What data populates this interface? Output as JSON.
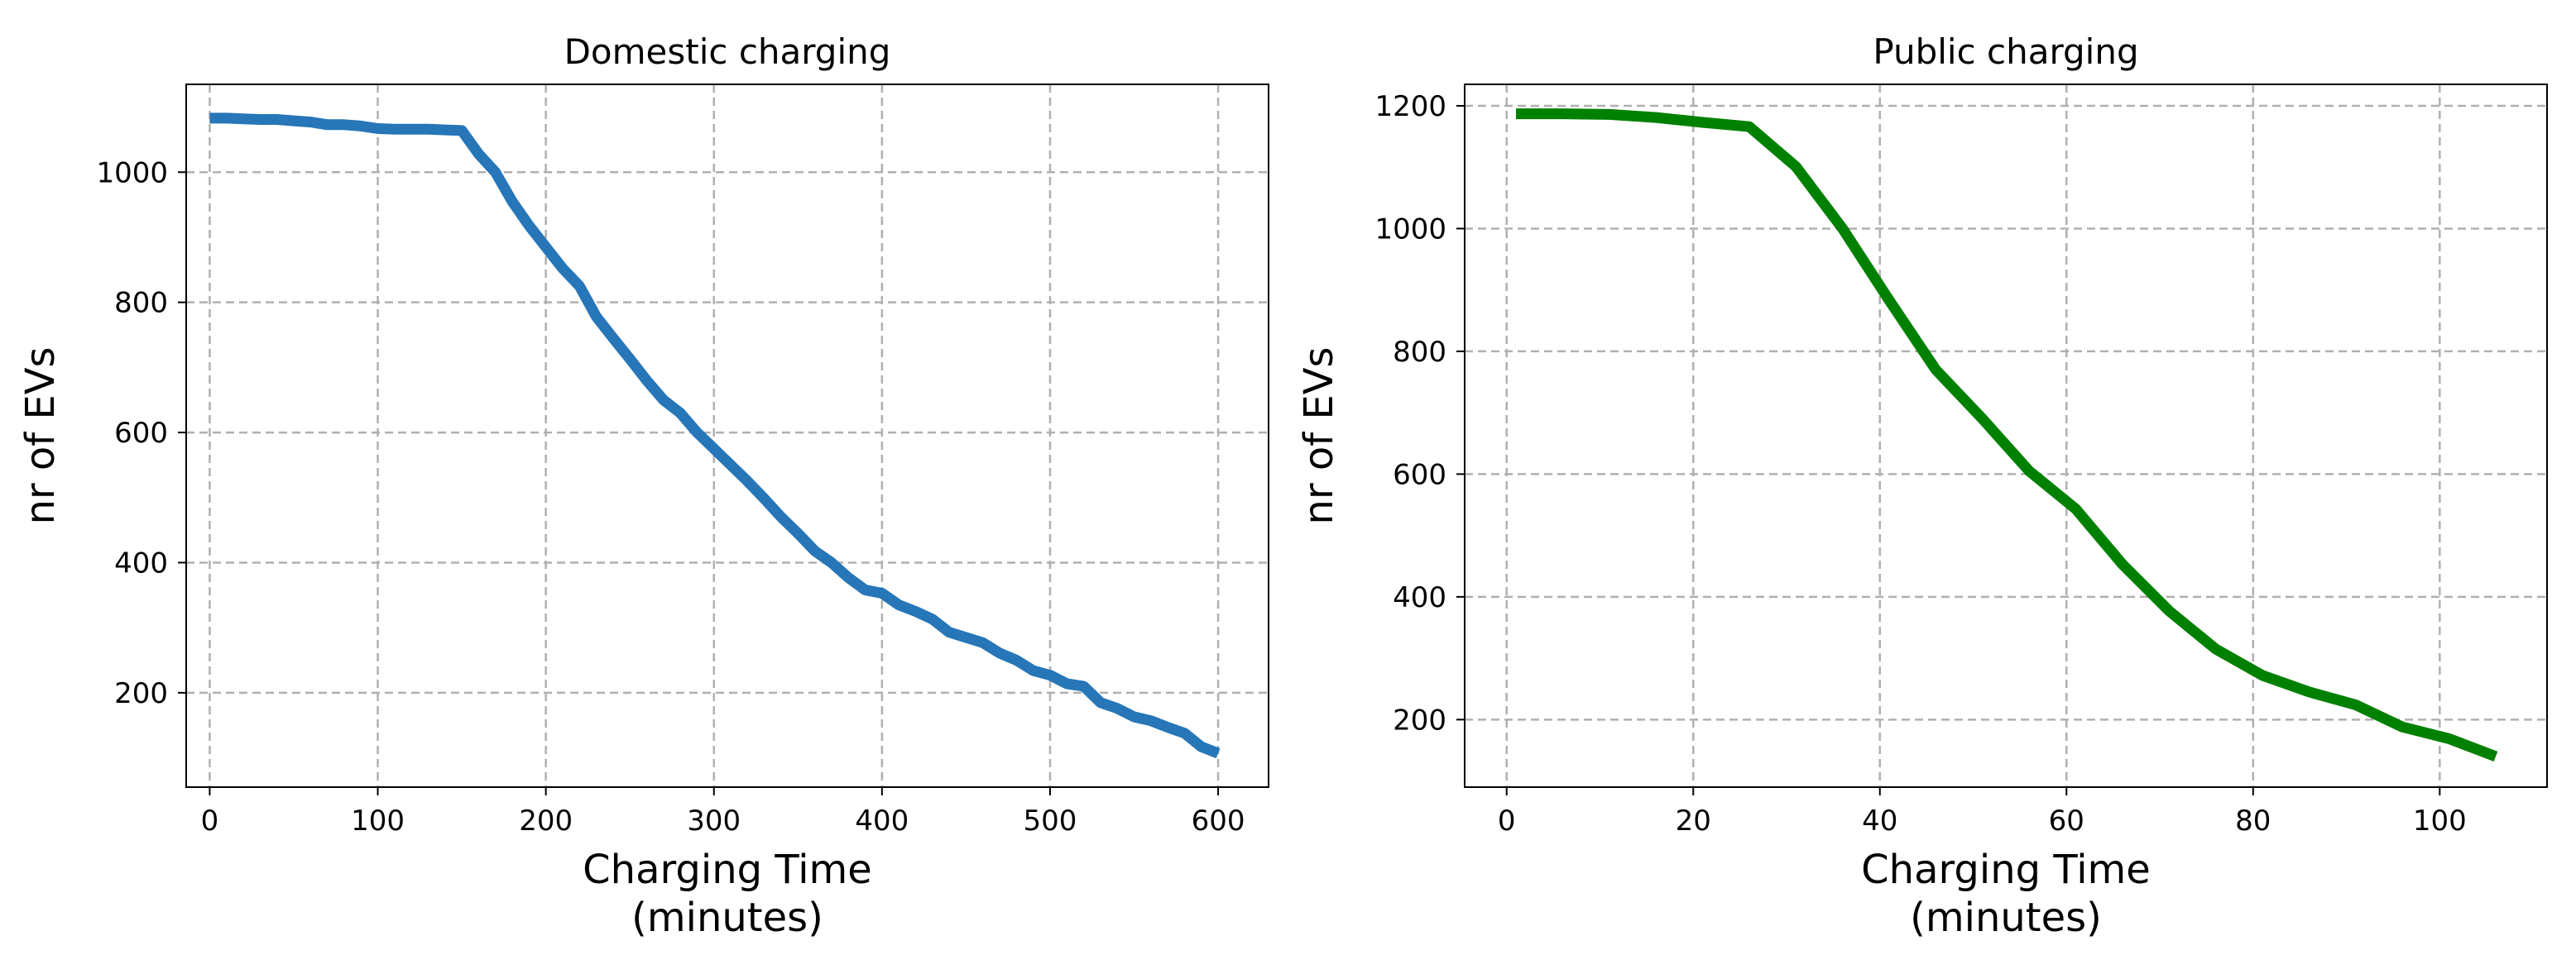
{
  "chart_data": [
    {
      "type": "line",
      "title": "Domestic charging",
      "xlabel_line1": "Charging Time",
      "xlabel_line2": "(minutes)",
      "ylabel": "nr of EVs",
      "xlim": [
        -14,
        630
      ],
      "ylim": [
        55,
        1135
      ],
      "xticks": [
        0,
        100,
        200,
        300,
        400,
        500,
        600
      ],
      "yticks": [
        200,
        400,
        600,
        800,
        1000
      ],
      "grid": true,
      "color": "#2676b8",
      "series": [
        {
          "x": [
            0,
            10,
            20,
            30,
            40,
            50,
            60,
            70,
            80,
            90,
            100,
            110,
            120,
            130,
            140,
            150,
            160,
            170,
            180,
            190,
            200,
            210,
            220,
            230,
            240,
            250,
            260,
            270,
            280,
            290,
            300,
            310,
            320,
            330,
            340,
            350,
            360,
            370,
            380,
            390,
            400,
            410,
            420,
            430,
            440,
            450,
            460,
            470,
            480,
            490,
            500,
            510,
            520,
            530,
            540,
            550,
            560,
            570,
            580,
            590,
            600
          ],
          "values": [
            1083,
            1083,
            1082,
            1081,
            1081,
            1079,
            1077,
            1073,
            1073,
            1071,
            1067,
            1066,
            1066,
            1066,
            1065,
            1064,
            1028,
            1000,
            955,
            918,
            885,
            852,
            825,
            778,
            745,
            713,
            680,
            650,
            630,
            600,
            575,
            550,
            525,
            498,
            470,
            445,
            418,
            400,
            377,
            358,
            353,
            335,
            325,
            313,
            293,
            285,
            277,
            261,
            250,
            234,
            227,
            214,
            210,
            185,
            176,
            163,
            157,
            147,
            138,
            117,
            107
          ]
        }
      ]
    },
    {
      "type": "line",
      "title": "Public charging",
      "xlabel_line1": "Charging Time",
      "xlabel_line2": "(minutes)",
      "ylabel": "nr of EVs",
      "xlim": [
        -4.5,
        111.5
      ],
      "ylim": [
        90,
        1235
      ],
      "xticks": [
        0,
        20,
        40,
        60,
        80,
        100
      ],
      "yticks": [
        200,
        400,
        600,
        800,
        1000,
        1200
      ],
      "grid": true,
      "color": "#008000",
      "series": [
        {
          "x": [
            1,
            6,
            11,
            16,
            21,
            26,
            31,
            36,
            41,
            46,
            51,
            56,
            61,
            66,
            71,
            76,
            81,
            86,
            91,
            96,
            101,
            106
          ],
          "values": [
            1187,
            1187,
            1186,
            1181,
            1173,
            1166,
            1101,
            1000,
            883,
            770,
            690,
            605,
            543,
            453,
            377,
            315,
            272,
            245,
            224,
            188,
            169,
            140
          ]
        }
      ]
    }
  ]
}
